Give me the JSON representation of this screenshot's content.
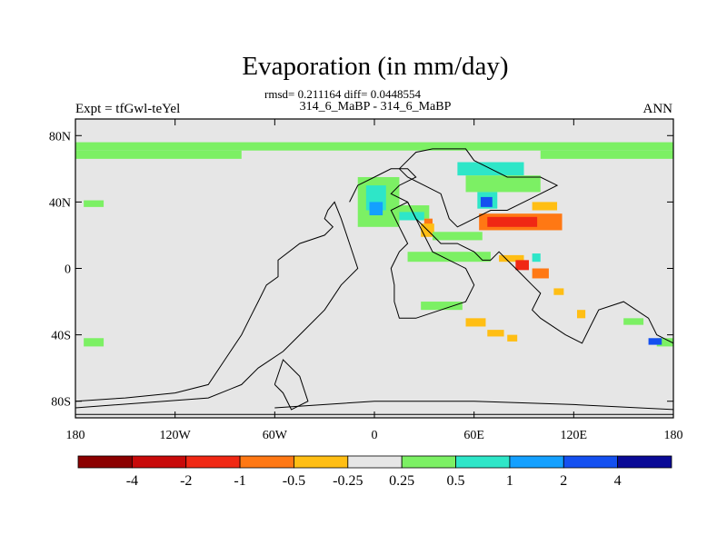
{
  "chart_data": {
    "type": "heatmap",
    "title": "Evaporation (in mm/day)",
    "stats_line": "rmsd= 0.211164 diff= 0.0448554",
    "subtitle": "314_6_MaBP - 314_6_MaBP",
    "left_label": "Expt = tfGwl-teYel",
    "right_label": "ANN",
    "xlim": [
      -180,
      180
    ],
    "ylim": [
      -90,
      90
    ],
    "x_ticks": [
      {
        "value": -180,
        "label": "180"
      },
      {
        "value": -120,
        "label": "120W"
      },
      {
        "value": -60,
        "label": "60W"
      },
      {
        "value": 0,
        "label": "0"
      },
      {
        "value": 60,
        "label": "60E"
      },
      {
        "value": 120,
        "label": "120E"
      },
      {
        "value": 180,
        "label": "180"
      }
    ],
    "y_ticks": [
      {
        "value": 80,
        "label": "80N"
      },
      {
        "value": 40,
        "label": "40N"
      },
      {
        "value": 0,
        "label": "0"
      },
      {
        "value": -40,
        "label": "40S"
      },
      {
        "value": -80,
        "label": "80S"
      }
    ],
    "colorbar": {
      "colors": [
        "#8b0000",
        "#c80a0a",
        "#f02814",
        "#ff7814",
        "#ffbe14",
        "#e6e6e6",
        "#7cf064",
        "#2ee6c8",
        "#14a0ff",
        "#1450f0",
        "#0a0a96"
      ],
      "labels": [
        "-4",
        "-2",
        "-1",
        "-0.5",
        "-0.25",
        "0.25",
        "0.5",
        "1",
        "2",
        "4"
      ]
    },
    "background_color": "#e6e6e6",
    "anomaly_regions": [
      {
        "lon": -180,
        "lat": 76,
        "w": 360,
        "h": 5,
        "color": "#7cf064"
      },
      {
        "lon": -180,
        "lat": 71,
        "w": 100,
        "h": 5,
        "color": "#7cf064"
      },
      {
        "lon": 100,
        "lat": 71,
        "w": 80,
        "h": 5,
        "color": "#7cf064"
      },
      {
        "lon": -175,
        "lat": 41,
        "w": 12,
        "h": 4,
        "color": "#7cf064"
      },
      {
        "lon": -175,
        "lat": -42,
        "w": 12,
        "h": 5,
        "color": "#7cf064"
      },
      {
        "lon": 170,
        "lat": -42,
        "w": 10,
        "h": 5,
        "color": "#7cf064"
      },
      {
        "lon": -10,
        "lat": 55,
        "w": 25,
        "h": 30,
        "color": "#7cf064"
      },
      {
        "lon": -5,
        "lat": 50,
        "w": 12,
        "h": 15,
        "color": "#2ee6c8"
      },
      {
        "lon": -3,
        "lat": 40,
        "w": 8,
        "h": 8,
        "color": "#14a0ff"
      },
      {
        "lon": 8,
        "lat": 38,
        "w": 25,
        "h": 8,
        "color": "#7cf064"
      },
      {
        "lon": 15,
        "lat": 34,
        "w": 15,
        "h": 5,
        "color": "#2ee6c8"
      },
      {
        "lon": 30,
        "lat": 30,
        "w": 5,
        "h": 6,
        "color": "#ff7814"
      },
      {
        "lon": 28,
        "lat": 27,
        "w": 8,
        "h": 8,
        "color": "#ffbe14"
      },
      {
        "lon": 50,
        "lat": 64,
        "w": 40,
        "h": 8,
        "color": "#2ee6c8"
      },
      {
        "lon": 55,
        "lat": 56,
        "w": 45,
        "h": 10,
        "color": "#7cf064"
      },
      {
        "lon": 62,
        "lat": 46,
        "w": 12,
        "h": 10,
        "color": "#2ee6c8"
      },
      {
        "lon": 64,
        "lat": 43,
        "w": 7,
        "h": 6,
        "color": "#1450f0"
      },
      {
        "lon": 63,
        "lat": 33,
        "w": 50,
        "h": 10,
        "color": "#ff7814"
      },
      {
        "lon": 68,
        "lat": 31,
        "w": 30,
        "h": 6,
        "color": "#f02814"
      },
      {
        "lon": 95,
        "lat": 40,
        "w": 15,
        "h": 5,
        "color": "#ffbe14"
      },
      {
        "lon": 75,
        "lat": 8,
        "w": 15,
        "h": 4,
        "color": "#ffbe14"
      },
      {
        "lon": 85,
        "lat": 5,
        "w": 8,
        "h": 6,
        "color": "#f02814"
      },
      {
        "lon": 95,
        "lat": 9,
        "w": 5,
        "h": 5,
        "color": "#2ee6c8"
      },
      {
        "lon": 95,
        "lat": 0,
        "w": 10,
        "h": 6,
        "color": "#ff7814"
      },
      {
        "lon": 108,
        "lat": -12,
        "w": 6,
        "h": 4,
        "color": "#ffbe14"
      },
      {
        "lon": 122,
        "lat": -25,
        "w": 5,
        "h": 5,
        "color": "#ffbe14"
      },
      {
        "lon": 20,
        "lat": 10,
        "w": 50,
        "h": 6,
        "color": "#7cf064"
      },
      {
        "lon": 35,
        "lat": 22,
        "w": 30,
        "h": 5,
        "color": "#7cf064"
      },
      {
        "lon": 28,
        "lat": -20,
        "w": 25,
        "h": 5,
        "color": "#7cf064"
      },
      {
        "lon": 55,
        "lat": -30,
        "w": 12,
        "h": 5,
        "color": "#ffbe14"
      },
      {
        "lon": 68,
        "lat": -37,
        "w": 10,
        "h": 4,
        "color": "#ffbe14"
      },
      {
        "lon": 80,
        "lat": -40,
        "w": 6,
        "h": 4,
        "color": "#ffbe14"
      },
      {
        "lon": 150,
        "lat": -30,
        "w": 12,
        "h": 4,
        "color": "#7cf064"
      },
      {
        "lon": 165,
        "lat": -42,
        "w": 8,
        "h": 4,
        "color": "#1450f0"
      }
    ],
    "land_outlines": [
      [
        [
          -180,
          -80
        ],
        [
          -150,
          -78
        ],
        [
          -120,
          -75
        ],
        [
          -100,
          -70
        ],
        [
          -90,
          -55
        ],
        [
          -80,
          -40
        ],
        [
          -75,
          -30
        ],
        [
          -70,
          -20
        ],
        [
          -65,
          -10
        ],
        [
          -58,
          -5
        ],
        [
          -58,
          5
        ],
        [
          -45,
          15
        ],
        [
          -30,
          20
        ],
        [
          -25,
          25
        ],
        [
          -30,
          30
        ],
        [
          -28,
          35
        ],
        [
          -24,
          40
        ],
        [
          -20,
          30
        ],
        [
          -15,
          15
        ],
        [
          -10,
          0
        ],
        [
          -20,
          -10
        ],
        [
          -30,
          -25
        ],
        [
          -45,
          -40
        ],
        [
          -55,
          -50
        ],
        [
          -70,
          -60
        ],
        [
          -80,
          -70
        ],
        [
          -100,
          -78
        ],
        [
          -180,
          -84
        ]
      ],
      [
        [
          -60,
          -70
        ],
        [
          -55,
          -75
        ],
        [
          -50,
          -85
        ],
        [
          -40,
          -80
        ],
        [
          -45,
          -65
        ],
        [
          -55,
          -55
        ],
        [
          -60,
          -70
        ]
      ],
      [
        [
          -15,
          40
        ],
        [
          -10,
          50
        ],
        [
          0,
          55
        ],
        [
          10,
          60
        ],
        [
          20,
          60
        ],
        [
          25,
          55
        ],
        [
          15,
          50
        ],
        [
          10,
          45
        ],
        [
          20,
          40
        ],
        [
          25,
          30
        ],
        [
          35,
          20
        ],
        [
          40,
          15
        ],
        [
          50,
          15
        ],
        [
          60,
          10
        ],
        [
          65,
          5
        ],
        [
          70,
          5
        ],
        [
          75,
          10
        ],
        [
          80,
          5
        ],
        [
          85,
          0
        ],
        [
          90,
          -5
        ],
        [
          95,
          -10
        ],
        [
          100,
          -15
        ],
        [
          95,
          -25
        ],
        [
          100,
          -30
        ],
        [
          115,
          -40
        ],
        [
          125,
          -45
        ],
        [
          130,
          -35
        ],
        [
          135,
          -25
        ],
        [
          150,
          -20
        ],
        [
          165,
          -30
        ],
        [
          170,
          -40
        ],
        [
          180,
          -45
        ],
        [
          180,
          -85
        ],
        [
          120,
          -82
        ],
        [
          60,
          -80
        ],
        [
          0,
          -80
        ],
        [
          -30,
          -82
        ],
        [
          -60,
          -84
        ]
      ],
      [
        [
          20,
          40
        ],
        [
          25,
          30
        ],
        [
          30,
          20
        ],
        [
          35,
          10
        ],
        [
          45,
          5
        ],
        [
          55,
          0
        ],
        [
          60,
          -10
        ],
        [
          55,
          -20
        ],
        [
          40,
          -25
        ],
        [
          25,
          -30
        ],
        [
          15,
          -30
        ],
        [
          12,
          -20
        ],
        [
          12,
          -10
        ],
        [
          10,
          0
        ],
        [
          15,
          10
        ],
        [
          20,
          15
        ],
        [
          15,
          25
        ],
        [
          10,
          35
        ],
        [
          20,
          40
        ]
      ],
      [
        [
          15,
          60
        ],
        [
          25,
          70
        ],
        [
          35,
          72
        ],
        [
          55,
          72
        ],
        [
          60,
          65
        ],
        [
          70,
          60
        ],
        [
          80,
          55
        ],
        [
          100,
          55
        ],
        [
          110,
          50
        ],
        [
          100,
          45
        ],
        [
          90,
          40
        ],
        [
          80,
          35
        ],
        [
          70,
          35
        ],
        [
          60,
          30
        ],
        [
          50,
          25
        ],
        [
          45,
          30
        ],
        [
          40,
          45
        ],
        [
          30,
          50
        ],
        [
          20,
          55
        ],
        [
          15,
          60
        ]
      ],
      [
        [
          -180,
          -88
        ],
        [
          180,
          -88
        ]
      ]
    ]
  }
}
